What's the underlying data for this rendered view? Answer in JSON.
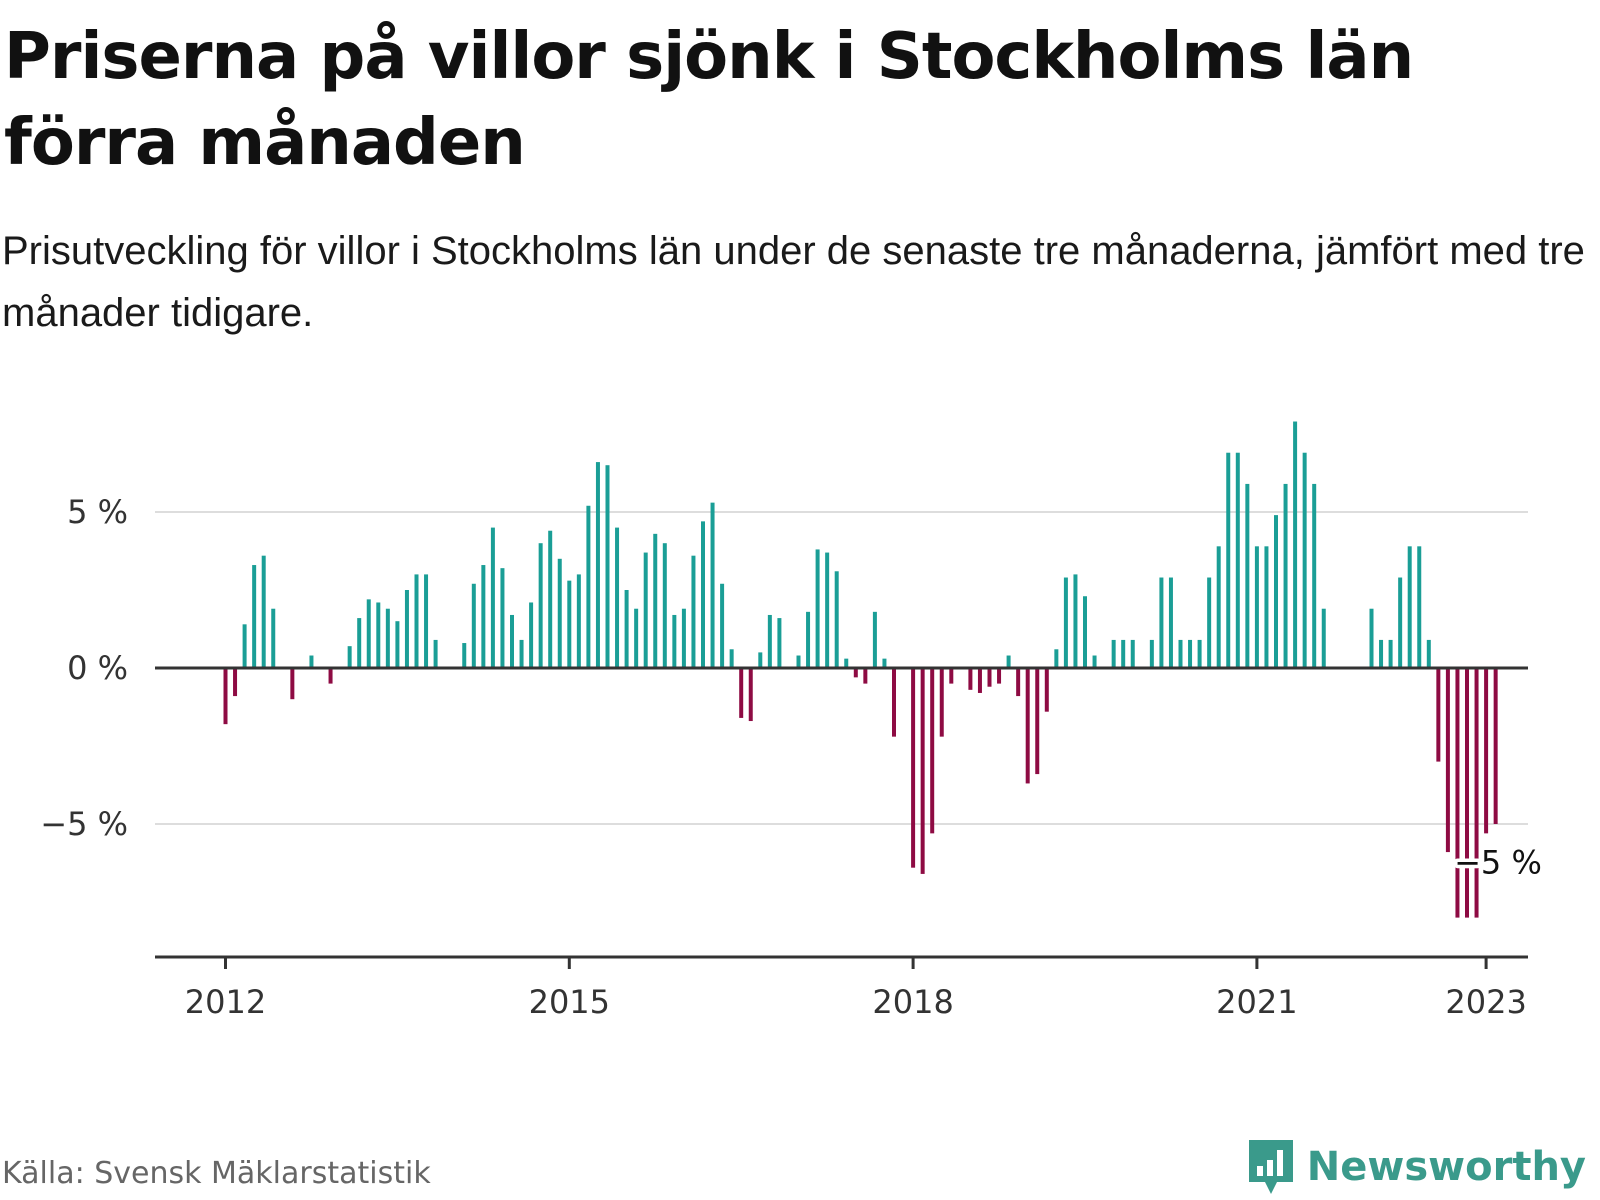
{
  "title": "Priserna på villor sjönk i Stockholms län förra månaden",
  "subtitle": "Prisutveckling för villor i Stockholms län under de senaste tre månaderna, jämfört med tre månader tidigare.",
  "source": "Källa: Svensk Mäklarstatistik",
  "brand": {
    "name": "Newsworthy",
    "icon": "newsworthy-logo-icon",
    "color": "#3a9a8b"
  },
  "colors": {
    "positive": "#1a9e96",
    "negative": "#8e0b43",
    "grid": "#dddddd",
    "axis": "#333333"
  },
  "chart_data": {
    "type": "bar",
    "start": "2012-01",
    "ylim": [
      -9.3,
      9
    ],
    "yticks": [
      5,
      0,
      -5
    ],
    "ytick_labels": [
      "5 %",
      "0 %",
      "−5 %"
    ],
    "xticks": [
      "2012-01",
      "2015-01",
      "2018-01",
      "2021-01",
      "2023-01"
    ],
    "xtick_labels": [
      "2012",
      "2015",
      "2018",
      "2021",
      "2023"
    ],
    "grid": true,
    "annotation": {
      "date": "2023-01",
      "label": "−5 %"
    },
    "series": [
      {
        "values": [
          -1.8,
          -0.9,
          1.4,
          3.3,
          3.6,
          1.9,
          0,
          -1.0,
          0,
          0.4,
          0,
          -0.5,
          0,
          0.7,
          1.6,
          2.2,
          2.1,
          1.9,
          1.5,
          2.5,
          3.0,
          3.0,
          0.9,
          0,
          0,
          0.8,
          2.7,
          3.3,
          4.5,
          3.2,
          1.7,
          0.9,
          2.1,
          4.0,
          4.4,
          3.5,
          2.8,
          3.0,
          5.2,
          6.6,
          6.5,
          4.5,
          2.5,
          1.9,
          3.7,
          4.3,
          4.0,
          1.7,
          1.9,
          3.6,
          4.7,
          5.3,
          2.7,
          0.6,
          -1.6,
          -1.7,
          0.5,
          1.7,
          1.6,
          0,
          0.4,
          1.8,
          3.8,
          3.7,
          3.1,
          0.3,
          -0.3,
          -0.5,
          1.8,
          0.3,
          -2.2,
          0,
          -6.4,
          -6.6,
          -5.3,
          -2.2,
          -0.5,
          0,
          -0.7,
          -0.8,
          -0.6,
          -0.5,
          0.4,
          -0.9,
          -3.7,
          -3.4,
          -1.4,
          0.6,
          2.9,
          3.0,
          2.3,
          0.4,
          0,
          0.9,
          0.9,
          0.9,
          0,
          0.9,
          2.9,
          2.9,
          0.9,
          0.9,
          0.9,
          2.9,
          3.9,
          6.9,
          6.9,
          5.9,
          3.9,
          3.9,
          4.9,
          5.9,
          7.9,
          6.9,
          5.9,
          1.9,
          0,
          0,
          0,
          0,
          1.9,
          0.9,
          0.9,
          2.9,
          3.9,
          3.9,
          0.9,
          -3.0,
          -5.9,
          -8.0,
          -8.0,
          -8.0,
          -5.3,
          -5.0
        ]
      }
    ]
  }
}
